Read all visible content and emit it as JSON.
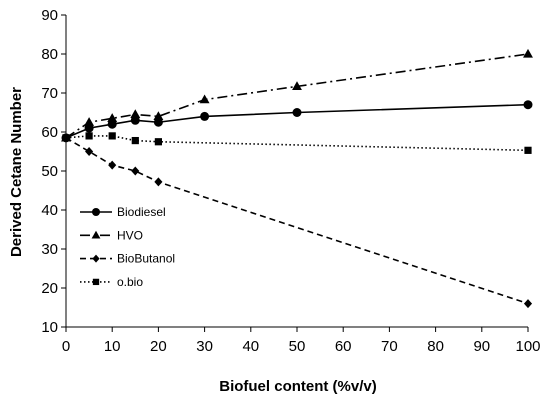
{
  "chart_data": {
    "type": "line",
    "title": "",
    "xlabel": "Biofuel content (%v/v)",
    "ylabel": "Derived Cetane Number",
    "xlim": [
      0,
      100
    ],
    "ylim": [
      10,
      90
    ],
    "xticks": [
      0,
      10,
      20,
      30,
      40,
      50,
      60,
      70,
      80,
      90,
      100
    ],
    "yticks": [
      10,
      20,
      30,
      40,
      50,
      60,
      70,
      80,
      90
    ],
    "grid": false,
    "legend_placement": "left-center",
    "series": [
      {
        "name": "Biodiesel",
        "marker": "circle",
        "dash": "solid",
        "color": "#000000",
        "x": [
          0,
          5,
          10,
          15,
          20,
          30,
          50,
          100
        ],
        "y": [
          58.5,
          61.0,
          62.0,
          63.0,
          62.5,
          64.0,
          65.0,
          67.0
        ]
      },
      {
        "name": "HVO",
        "marker": "triangle",
        "dash": "dashdot",
        "color": "#000000",
        "x": [
          0,
          5,
          10,
          15,
          20,
          30,
          50,
          100
        ],
        "y": [
          58.5,
          62.5,
          63.5,
          64.5,
          64.0,
          68.3,
          71.7,
          80.0
        ]
      },
      {
        "name": "BioButanol",
        "marker": "diamond",
        "dash": "dashed",
        "color": "#000000",
        "x": [
          0,
          5,
          10,
          15,
          20,
          100
        ],
        "y": [
          58.5,
          55.0,
          51.5,
          50.0,
          47.2,
          16.0
        ]
      },
      {
        "name": "o.bio",
        "marker": "square",
        "dash": "dotted",
        "color": "#000000",
        "x": [
          0,
          5,
          10,
          15,
          20,
          100
        ],
        "y": [
          58.5,
          59.0,
          59.0,
          57.8,
          57.5,
          55.3
        ]
      }
    ]
  }
}
